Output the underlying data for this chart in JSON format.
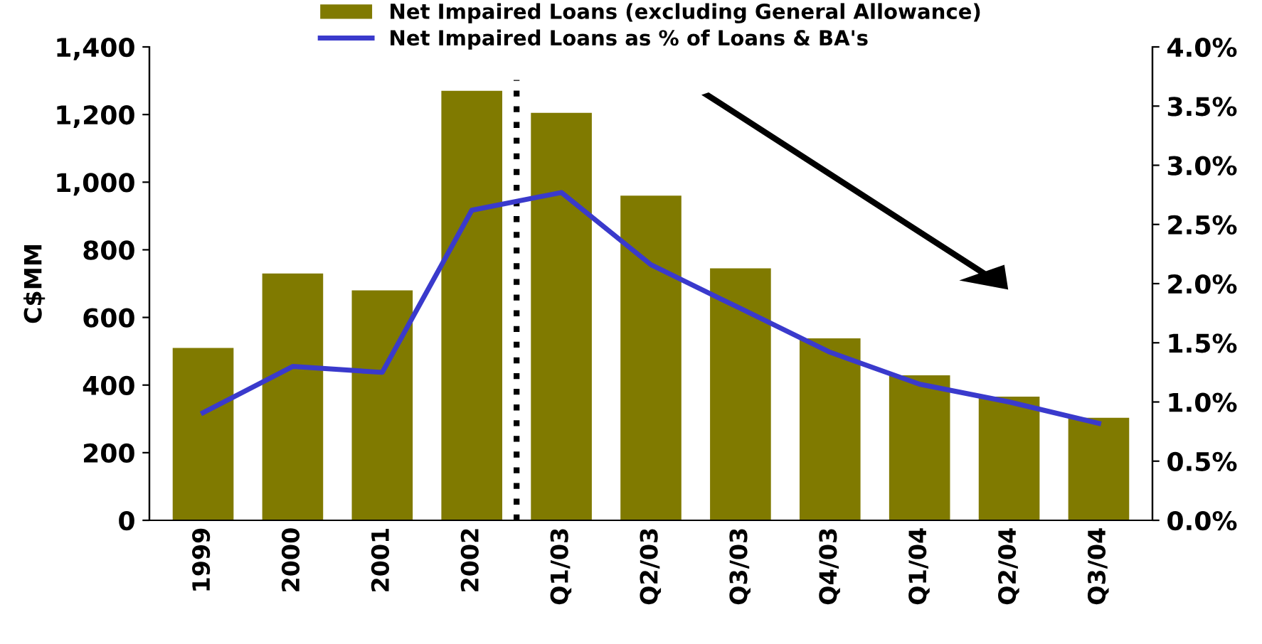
{
  "chart_data": {
    "type": "bar",
    "categories": [
      "1999",
      "2000",
      "2001",
      "2002",
      "Q1/03",
      "Q2/03",
      "Q3/03",
      "Q4/03",
      "Q1/04",
      "Q2/04",
      "Q3/04"
    ],
    "series": [
      {
        "name": "Net Impaired Loans (excluding General Allowance)",
        "color": "#807a00",
        "values": [
          510,
          730,
          680,
          1270,
          1205,
          960,
          745,
          538,
          429,
          366,
          303
        ]
      },
      {
        "name": "Net Impaired Loans as % of Loans & BA's",
        "type": "line",
        "axis": "y2",
        "color": "#3a3acc",
        "values": [
          0.91,
          1.3,
          1.25,
          2.62,
          2.77,
          2.16,
          1.79,
          1.42,
          1.15,
          1.0,
          0.82
        ]
      }
    ],
    "ylabel": "C$MM",
    "ylim": [
      0,
      1400
    ],
    "yticks": [
      0,
      200,
      400,
      600,
      800,
      {
        "value": 1000,
        "label": "1,000"
      },
      {
        "value": 1200,
        "label": "1,200"
      },
      {
        "value": 1400,
        "label": "1,400"
      }
    ],
    "y2lim": [
      0,
      4.0
    ],
    "y2ticks": [
      {
        "value": 0,
        "label": "0.0%"
      },
      {
        "value": 0.5,
        "label": "0.5%"
      },
      {
        "value": 1.0,
        "label": "1.0%"
      },
      {
        "value": 1.5,
        "label": "1.5%"
      },
      {
        "value": 2.0,
        "label": "2.0%"
      },
      {
        "value": 2.5,
        "label": "2.5%"
      },
      {
        "value": 3.0,
        "label": "3.0%"
      },
      {
        "value": 3.5,
        "label": "3.5%"
      },
      {
        "value": 4.0,
        "label": "4.0%"
      }
    ],
    "legend": "top",
    "grid": false,
    "marker": "none"
  }
}
